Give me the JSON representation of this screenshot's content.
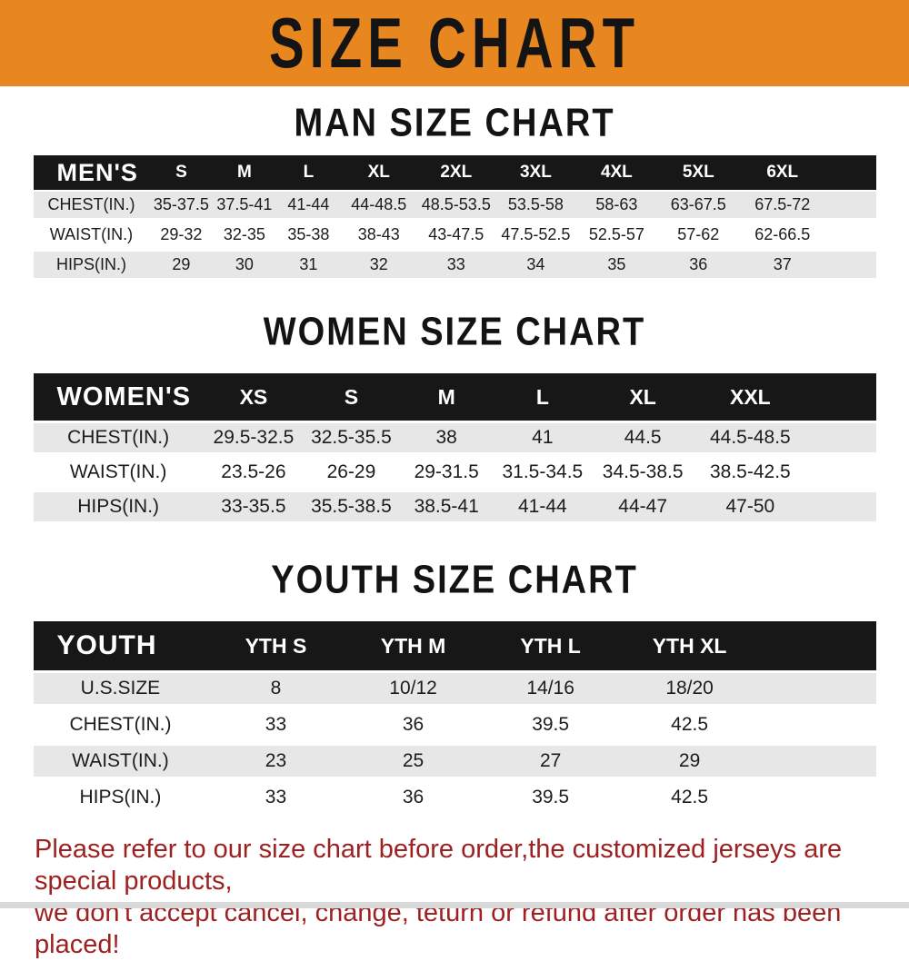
{
  "banner": {
    "title": "SIZE CHART"
  },
  "sections": [
    {
      "id": "men",
      "title": "MAN SIZE CHART",
      "header": [
        "MEN'S",
        "S",
        "M",
        "L",
        "XL",
        "2XL",
        "3XL",
        "4XL",
        "5XL",
        "6XL"
      ],
      "rows": [
        {
          "label": "CHEST(IN.)",
          "values": [
            "35-37.5",
            "37.5-41",
            "41-44",
            "44-48.5",
            "48.5-53.5",
            "53.5-58",
            "58-63",
            "63-67.5",
            "67.5-72"
          ]
        },
        {
          "label": "WAIST(IN.)",
          "values": [
            "29-32",
            "32-35",
            "35-38",
            "38-43",
            "43-47.5",
            "47.5-52.5",
            "52.5-57",
            "57-62",
            "62-66.5"
          ]
        },
        {
          "label": "HIPS(IN.)",
          "values": [
            "29",
            "30",
            "31",
            "32",
            "33",
            "34",
            "35",
            "36",
            "37"
          ]
        }
      ]
    },
    {
      "id": "women",
      "title": "WOMEN SIZE CHART",
      "header": [
        "WOMEN'S",
        "XS",
        "S",
        "M",
        "L",
        "XL",
        "XXL"
      ],
      "rows": [
        {
          "label": "CHEST(IN.)",
          "values": [
            "29.5-32.5",
            "32.5-35.5",
            "38",
            "41",
            "44.5",
            "44.5-48.5"
          ]
        },
        {
          "label": "WAIST(IN.)",
          "values": [
            "23.5-26",
            "26-29",
            "29-31.5",
            "31.5-34.5",
            "34.5-38.5",
            "38.5-42.5"
          ]
        },
        {
          "label": "HIPS(IN.)",
          "values": [
            "33-35.5",
            "35.5-38.5",
            "38.5-41",
            "41-44",
            "44-47",
            "47-50"
          ]
        }
      ]
    },
    {
      "id": "youth",
      "title": "YOUTH SIZE CHART",
      "header": [
        "YOUTH",
        "YTH S",
        "YTH M",
        "YTH L",
        "YTH XL"
      ],
      "rows": [
        {
          "label": "U.S.SIZE",
          "values": [
            "8",
            "10/12",
            "14/16",
            "18/20"
          ]
        },
        {
          "label": "CHEST(IN.)",
          "values": [
            "33",
            "36",
            "39.5",
            "42.5"
          ]
        },
        {
          "label": "WAIST(IN.)",
          "values": [
            "23",
            "25",
            "27",
            "29"
          ]
        },
        {
          "label": "HIPS(IN.)",
          "values": [
            "33",
            "36",
            "39.5",
            "42.5"
          ]
        }
      ]
    }
  ],
  "footer": {
    "line1": "Please refer to our size chart before order,the customized jerseys are special products,",
    "line2": "we don't accept cancel, change, teturn or refund after order has been placed!"
  },
  "colors": {
    "banner_bg": "#e8871f",
    "banner_text": "#141414",
    "header_bar_bg": "#171717",
    "header_bar_text": "#ffffff",
    "row_stripe": "#e7e7e7",
    "table_text": "#1c1c1c",
    "notice_text": "#9e2121"
  }
}
